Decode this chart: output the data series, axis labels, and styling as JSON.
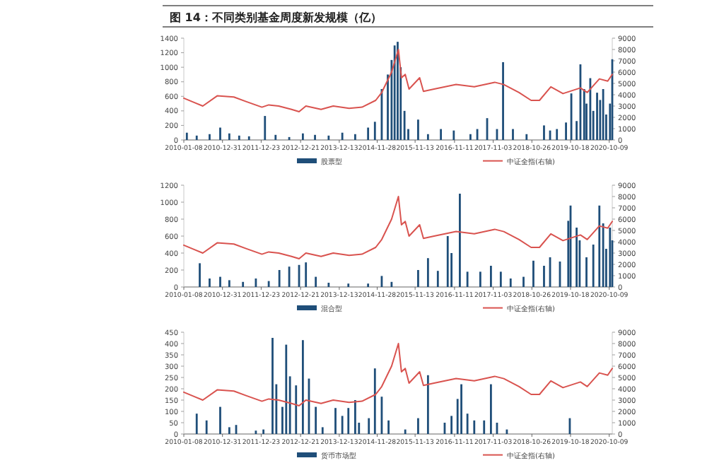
{
  "chart_data": [
    {
      "type": "bar",
      "title": "图 14：不同类别基金周度新发规模（亿）",
      "legend": "bottom",
      "grid": false,
      "xlim": [
        "2010-01-08",
        "2020-11-06"
      ],
      "xticks": [
        "2010-01-08",
        "2010-12-31",
        "2011-12-23",
        "2012-12-21",
        "2013-12-13",
        "2014-11-28",
        "2015-11-13",
        "2016-11-11",
        "2017-11-03",
        "2018-10-26",
        "2019-10-18",
        "2020-10-09"
      ],
      "ylim": [
        0,
        1400
      ],
      "yticks": [
        0,
        200,
        400,
        600,
        800,
        1000,
        1200,
        1400
      ],
      "y2lim": [
        0,
        9000
      ],
      "y2ticks": [
        0,
        1000,
        2000,
        3000,
        4000,
        5000,
        6000,
        7000,
        8000,
        9000
      ],
      "series": [
        {
          "name": "股票型",
          "color": "#1f4e79",
          "x": [
            "2010-02-05",
            "2010-05-07",
            "2010-09-03",
            "2010-12-10",
            "2011-03-04",
            "2011-06-03",
            "2011-09-02",
            "2012-01-27",
            "2012-05-04",
            "2012-09-07",
            "2013-01-11",
            "2013-05-03",
            "2013-09-06",
            "2014-01-10",
            "2014-05-09",
            "2014-09-05",
            "2014-11-07",
            "2015-01-09",
            "2015-03-06",
            "2015-04-10",
            "2015-05-08",
            "2015-06-05",
            "2015-07-03",
            "2015-08-07",
            "2015-09-11",
            "2015-12-11",
            "2016-03-11",
            "2016-07-08",
            "2016-11-04",
            "2017-04-07",
            "2017-06-09",
            "2017-09-08",
            "2017-12-08",
            "2018-02-02",
            "2018-05-04",
            "2018-09-07",
            "2019-02-15",
            "2019-04-12",
            "2019-06-14",
            "2019-09-06",
            "2019-10-25",
            "2019-12-13",
            "2020-01-17",
            "2020-02-21",
            "2020-03-13",
            "2020-04-17",
            "2020-05-15",
            "2020-06-19",
            "2020-07-17",
            "2020-08-14",
            "2020-09-11",
            "2020-10-16",
            "2020-11-06"
          ],
          "values": [
            100,
            60,
            80,
            170,
            90,
            60,
            50,
            330,
            70,
            40,
            90,
            70,
            60,
            100,
            80,
            170,
            250,
            700,
            900,
            1100,
            1300,
            1350,
            1000,
            400,
            150,
            280,
            80,
            150,
            130,
            80,
            150,
            300,
            150,
            1070,
            150,
            80,
            200,
            130,
            150,
            240,
            640,
            260,
            1040,
            700,
            500,
            850,
            400,
            650,
            550,
            700,
            350,
            500,
            1110
          ]
        },
        {
          "name": "中证全指(右轴)",
          "type": "line",
          "axis": "y2",
          "color": "#d9534f",
          "x": [
            "2010-01-08",
            "2010-04-16",
            "2010-07-02",
            "2010-11-12",
            "2011-04-15",
            "2011-08-05",
            "2011-12-30",
            "2012-03-02",
            "2012-06-01",
            "2012-09-28",
            "2012-12-07",
            "2013-02-08",
            "2013-06-28",
            "2013-10-18",
            "2014-03-14",
            "2014-07-11",
            "2014-11-14",
            "2015-01-09",
            "2015-04-10",
            "2015-06-12",
            "2015-07-10",
            "2015-08-14",
            "2015-09-18",
            "2015-12-25",
            "2016-01-29",
            "2016-05-06",
            "2016-11-25",
            "2017-05-12",
            "2017-11-17",
            "2018-02-09",
            "2018-06-29",
            "2018-10-19",
            "2019-01-04",
            "2019-04-19",
            "2019-08-09",
            "2020-01-17",
            "2020-03-20",
            "2020-07-10",
            "2020-09-25",
            "2020-11-06"
          ],
          "values": [
            3700,
            3300,
            3000,
            3900,
            3800,
            3400,
            2900,
            3100,
            3000,
            2700,
            2500,
            3000,
            2700,
            3000,
            2800,
            2900,
            3500,
            4200,
            6000,
            8000,
            5500,
            5800,
            4500,
            5500,
            4300,
            4500,
            4900,
            4700,
            5100,
            4900,
            4200,
            3500,
            3500,
            4700,
            4100,
            4600,
            4200,
            5400,
            5200,
            5800
          ]
        }
      ]
    },
    {
      "type": "bar",
      "legend": "bottom",
      "grid": false,
      "xlim": [
        "2010-01-08",
        "2020-11-06"
      ],
      "xticks": [
        "2010-01-08",
        "2010-12-31",
        "2011-12-23",
        "2012-12-21",
        "2013-12-13",
        "2014-11-28",
        "2015-11-13",
        "2016-11-11",
        "2017-11-03",
        "2018-10-26",
        "2019-10-18",
        "2020-10-09"
      ],
      "ylim": [
        0,
        1200
      ],
      "yticks": [
        0,
        200,
        400,
        600,
        800,
        1000,
        1200
      ],
      "y2lim": [
        0,
        9000
      ],
      "y2ticks": [
        0,
        1000,
        2000,
        3000,
        4000,
        5000,
        6000,
        7000,
        8000,
        9000
      ],
      "series": [
        {
          "name": "混合型",
          "color": "#1f4e79",
          "x": [
            "2010-06-04",
            "2010-09-03",
            "2010-12-10",
            "2011-03-04",
            "2011-07-08",
            "2011-11-04",
            "2012-03-02",
            "2012-06-08",
            "2012-09-07",
            "2012-12-07",
            "2013-02-08",
            "2013-05-10",
            "2013-09-06",
            "2014-03-07",
            "2014-09-05",
            "2015-01-09",
            "2015-04-10",
            "2015-12-11",
            "2016-03-11",
            "2016-06-10",
            "2016-09-09",
            "2016-10-14",
            "2016-12-30",
            "2017-03-10",
            "2017-07-07",
            "2017-10-13",
            "2018-01-12",
            "2018-04-13",
            "2018-08-10",
            "2018-11-09",
            "2019-02-15",
            "2019-04-12",
            "2019-07-12",
            "2019-09-27",
            "2019-10-18",
            "2019-12-13",
            "2020-01-10",
            "2020-03-13",
            "2020-05-15",
            "2020-07-10",
            "2020-08-14",
            "2020-09-11",
            "2020-10-16",
            "2020-11-06"
          ],
          "values": [
            280,
            100,
            120,
            80,
            60,
            100,
            70,
            200,
            240,
            260,
            290,
            120,
            50,
            40,
            40,
            130,
            60,
            200,
            340,
            190,
            600,
            400,
            1100,
            180,
            180,
            250,
            180,
            100,
            120,
            310,
            250,
            350,
            300,
            780,
            960,
            700,
            550,
            350,
            500,
            960,
            750,
            450,
            700,
            550
          ]
        },
        {
          "name": "中证全指(右轴)",
          "type": "line",
          "axis": "y2",
          "color": "#d9534f",
          "x": [
            "2010-01-08",
            "2010-04-16",
            "2010-07-02",
            "2010-11-12",
            "2011-04-15",
            "2011-08-05",
            "2011-12-30",
            "2012-03-02",
            "2012-06-01",
            "2012-09-28",
            "2012-12-07",
            "2013-02-08",
            "2013-06-28",
            "2013-10-18",
            "2014-03-14",
            "2014-07-11",
            "2014-11-14",
            "2015-01-09",
            "2015-04-10",
            "2015-06-12",
            "2015-07-10",
            "2015-08-14",
            "2015-09-18",
            "2015-12-25",
            "2016-01-29",
            "2016-05-06",
            "2016-11-25",
            "2017-05-12",
            "2017-11-17",
            "2018-02-09",
            "2018-06-29",
            "2018-10-19",
            "2019-01-04",
            "2019-04-19",
            "2019-08-09",
            "2020-01-17",
            "2020-03-20",
            "2020-07-10",
            "2020-09-25",
            "2020-11-06"
          ],
          "values": [
            3700,
            3300,
            3000,
            3900,
            3800,
            3400,
            2900,
            3100,
            3000,
            2700,
            2500,
            3000,
            2700,
            3000,
            2800,
            2900,
            3500,
            4200,
            6000,
            8000,
            5500,
            5800,
            4500,
            5500,
            4300,
            4500,
            4900,
            4700,
            5100,
            4900,
            4200,
            3500,
            3500,
            4700,
            4100,
            4600,
            4200,
            5400,
            5200,
            5800
          ]
        }
      ]
    },
    {
      "type": "bar",
      "legend": "bottom",
      "grid": false,
      "xlim": [
        "2010-01-08",
        "2020-11-06"
      ],
      "xticks": [
        "2010-01-08",
        "2010-12-31",
        "2011-12-23",
        "2012-12-21",
        "2013-12-13",
        "2014-11-28",
        "2015-11-13",
        "2016-11-11",
        "2017-11-03",
        "2018-10-26",
        "2019-10-18",
        "2020-10-09"
      ],
      "ylim": [
        0,
        450
      ],
      "yticks": [
        0,
        50,
        100,
        150,
        200,
        250,
        300,
        350,
        400,
        450
      ],
      "y2lim": [
        0,
        9000
      ],
      "y2ticks": [
        0,
        1000,
        2000,
        3000,
        4000,
        5000,
        6000,
        7000,
        8000,
        9000
      ],
      "series": [
        {
          "name": "货币市场型",
          "color": "#1f4e79",
          "x": [
            "2010-05-07",
            "2010-08-06",
            "2010-12-10",
            "2011-03-04",
            "2011-05-06",
            "2011-11-04",
            "2012-01-13",
            "2012-04-06",
            "2012-05-11",
            "2012-07-06",
            "2012-08-10",
            "2012-09-14",
            "2012-11-09",
            "2013-01-11",
            "2013-03-08",
            "2013-05-10",
            "2013-07-12",
            "2013-11-08",
            "2014-01-10",
            "2014-03-07",
            "2014-05-09",
            "2014-06-13",
            "2014-09-12",
            "2014-11-07",
            "2015-01-09",
            "2015-03-13",
            "2015-08-14",
            "2015-12-11",
            "2016-03-11",
            "2016-08-12",
            "2016-10-14",
            "2016-12-09",
            "2017-01-13",
            "2017-03-10",
            "2017-05-12",
            "2017-08-11",
            "2017-10-13",
            "2017-12-08",
            "2018-03-09",
            "2019-10-11"
          ],
          "values": [
            90,
            60,
            120,
            30,
            40,
            15,
            20,
            425,
            220,
            120,
            395,
            255,
            215,
            415,
            245,
            120,
            30,
            115,
            80,
            115,
            150,
            50,
            70,
            290,
            165,
            60,
            20,
            70,
            260,
            50,
            80,
            155,
            220,
            90,
            60,
            60,
            220,
            50,
            20,
            70
          ]
        },
        {
          "name": "中证全指(右轴)",
          "type": "line",
          "axis": "y2",
          "color": "#d9534f",
          "x": [
            "2010-01-08",
            "2010-04-16",
            "2010-07-02",
            "2010-11-12",
            "2011-04-15",
            "2011-08-05",
            "2011-12-30",
            "2012-03-02",
            "2012-06-01",
            "2012-09-28",
            "2012-12-07",
            "2013-02-08",
            "2013-06-28",
            "2013-10-18",
            "2014-03-14",
            "2014-07-11",
            "2014-11-14",
            "2015-01-09",
            "2015-04-10",
            "2015-06-12",
            "2015-07-10",
            "2015-08-14",
            "2015-09-18",
            "2015-12-25",
            "2016-01-29",
            "2016-05-06",
            "2016-11-25",
            "2017-05-12",
            "2017-11-17",
            "2018-02-09",
            "2018-06-29",
            "2018-10-19",
            "2019-01-04",
            "2019-04-19",
            "2019-08-09",
            "2020-01-17",
            "2020-03-20",
            "2020-07-10",
            "2020-09-25",
            "2020-11-06"
          ],
          "values": [
            3700,
            3300,
            3000,
            3900,
            3800,
            3400,
            2900,
            3100,
            3000,
            2700,
            2500,
            3000,
            2700,
            3000,
            2800,
            2900,
            3500,
            4200,
            6000,
            8000,
            5500,
            5800,
            4500,
            5500,
            4300,
            4500,
            4900,
            4700,
            5100,
            4900,
            4200,
            3500,
            3500,
            4700,
            4100,
            4600,
            4200,
            5400,
            5200,
            5800
          ]
        }
      ]
    }
  ]
}
